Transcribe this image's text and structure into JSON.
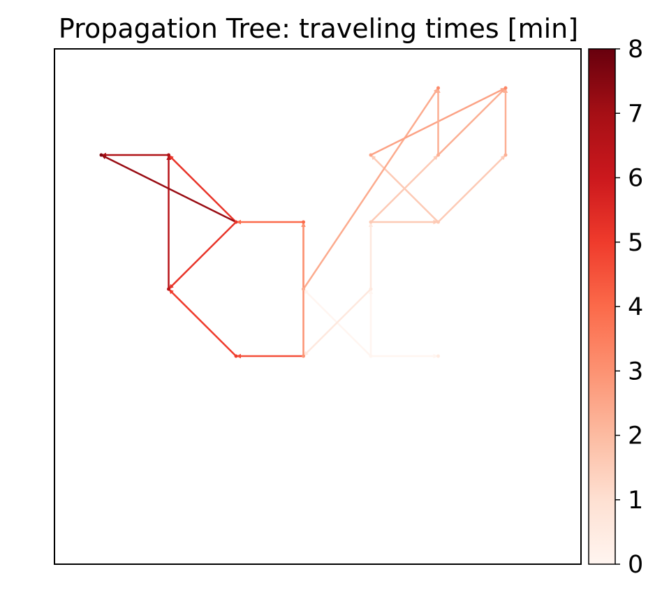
{
  "chart_data": {
    "type": "network",
    "title": "Propagation Tree: traveling times [min]",
    "colormap": "Reds",
    "colorbar": {
      "min": 0,
      "max": 8,
      "ticks": [
        "0",
        "1",
        "2",
        "3",
        "4",
        "5",
        "6",
        "7",
        "8"
      ]
    },
    "axes": {
      "xlim": [
        0,
        10
      ],
      "ylim": [
        0,
        10
      ],
      "show_ticks": false
    },
    "nodes": [
      {
        "id": "A",
        "x": 4.0,
        "y": 4.0,
        "time": 0
      },
      {
        "id": "B",
        "x": 5.0,
        "y": 4.0,
        "time": 0.5
      },
      {
        "id": "C",
        "x": 4.0,
        "y": 5.0,
        "time": 0.6
      },
      {
        "id": "D",
        "x": 4.0,
        "y": 6.0,
        "time": 1.6
      },
      {
        "id": "E",
        "x": 5.0,
        "y": 6.0,
        "time": 1.6
      },
      {
        "id": "F",
        "x": 5.0,
        "y": 7.0,
        "time": 2.3
      },
      {
        "id": "G",
        "x": 6.0,
        "y": 7.0,
        "time": 2.3
      },
      {
        "id": "H",
        "x": 3.0,
        "y": 5.0,
        "time": 2.4
      },
      {
        "id": "I",
        "x": 4.0,
        "y": 7.0,
        "time": 2.6
      },
      {
        "id": "J",
        "x": 3.0,
        "y": 4.0,
        "time": 3.0
      },
      {
        "id": "K",
        "x": 5.0,
        "y": 8.0,
        "time": 3.2
      },
      {
        "id": "L",
        "x": 6.0,
        "y": 8.0,
        "time": 3.3
      },
      {
        "id": "M",
        "x": 3.0,
        "y": 6.0,
        "time": 4.0
      },
      {
        "id": "N",
        "x": 2.0,
        "y": 4.0,
        "time": 5.0
      },
      {
        "id": "O",
        "x": 2.0,
        "y": 6.0,
        "time": 5.2
      },
      {
        "id": "P",
        "x": 1.0,
        "y": 5.0,
        "time": 6.5
      },
      {
        "id": "Q",
        "x": 1.0,
        "y": 7.0,
        "time": 6.7
      },
      {
        "id": "R",
        "x": 0.0,
        "y": 7.0,
        "time": 7.6
      }
    ],
    "edges": [
      {
        "from": "A",
        "to": "B",
        "time": 0
      },
      {
        "from": "A",
        "to": "C",
        "time": 0
      },
      {
        "from": "C",
        "to": "D",
        "time": 0.6
      },
      {
        "from": "D",
        "to": "E",
        "time": 1.6
      },
      {
        "from": "D",
        "to": "F",
        "time": 1.6
      },
      {
        "from": "E",
        "to": "G",
        "time": 1.6
      },
      {
        "from": "E",
        "to": "I",
        "time": 1.6
      },
      {
        "from": "A",
        "to": "H",
        "time": 0
      },
      {
        "from": "C",
        "to": "J",
        "time": 0.6
      },
      {
        "from": "H",
        "to": "K",
        "time": 2.4
      },
      {
        "from": "F",
        "to": "L",
        "time": 2.3
      },
      {
        "from": "I",
        "to": "L",
        "time": 2.6
      },
      {
        "from": "F",
        "to": "K",
        "time": 2.3
      },
      {
        "from": "G",
        "to": "L",
        "time": 2.3
      },
      {
        "from": "H",
        "to": "M",
        "time": 2.4
      },
      {
        "from": "J",
        "to": "N",
        "time": 4.6
      },
      {
        "from": "J",
        "to": "M",
        "time": 3.0
      },
      {
        "from": "M",
        "to": "O",
        "time": 4.0
      },
      {
        "from": "N",
        "to": "P",
        "time": 5.0
      },
      {
        "from": "O",
        "to": "P",
        "time": 5.2
      },
      {
        "from": "O",
        "to": "Q",
        "time": 5.2
      },
      {
        "from": "P",
        "to": "Q",
        "time": 6.5
      },
      {
        "from": "Q",
        "to": "R",
        "time": 6.7
      },
      {
        "from": "O",
        "to": "R",
        "time": 7.2
      }
    ]
  }
}
